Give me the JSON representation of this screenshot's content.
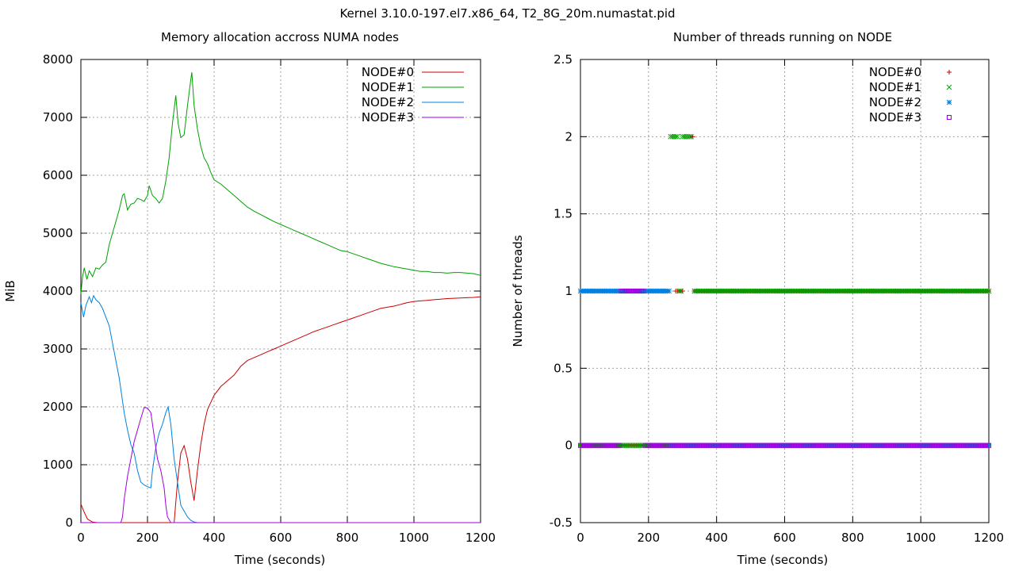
{
  "figure_title": "Kernel 3.10.0-197.el7.x86_64, T2_8G_20m.numastat.pid",
  "chart_data": [
    {
      "type": "line",
      "title": "Memory allocation accross NUMA nodes",
      "xlabel": "Time (seconds)",
      "ylabel": "MiB",
      "xlim": [
        0,
        1200
      ],
      "ylim": [
        0,
        8000
      ],
      "xticks": [
        0,
        200,
        400,
        600,
        800,
        1000,
        1200
      ],
      "yticks": [
        0,
        1000,
        2000,
        3000,
        4000,
        5000,
        6000,
        7000,
        8000
      ],
      "grid": true,
      "legend_position": "top-right",
      "series": [
        {
          "name": "NODE#0",
          "color": "#cc0000",
          "points": [
            [
              0,
              320
            ],
            [
              10,
              180
            ],
            [
              20,
              60
            ],
            [
              35,
              10
            ],
            [
              50,
              0
            ],
            [
              280,
              0
            ],
            [
              290,
              700
            ],
            [
              300,
              1200
            ],
            [
              310,
              1330
            ],
            [
              320,
              1100
            ],
            [
              330,
              700
            ],
            [
              340,
              380
            ],
            [
              350,
              900
            ],
            [
              360,
              1350
            ],
            [
              370,
              1700
            ],
            [
              380,
              1950
            ],
            [
              400,
              2200
            ],
            [
              420,
              2350
            ],
            [
              440,
              2450
            ],
            [
              460,
              2550
            ],
            [
              480,
              2700
            ],
            [
              500,
              2800
            ],
            [
              520,
              2850
            ],
            [
              540,
              2900
            ],
            [
              560,
              2950
            ],
            [
              580,
              3000
            ],
            [
              600,
              3050
            ],
            [
              620,
              3100
            ],
            [
              640,
              3150
            ],
            [
              660,
              3200
            ],
            [
              680,
              3250
            ],
            [
              700,
              3300
            ],
            [
              720,
              3340
            ],
            [
              740,
              3380
            ],
            [
              760,
              3420
            ],
            [
              780,
              3460
            ],
            [
              800,
              3500
            ],
            [
              820,
              3540
            ],
            [
              840,
              3580
            ],
            [
              860,
              3620
            ],
            [
              880,
              3660
            ],
            [
              900,
              3700
            ],
            [
              920,
              3720
            ],
            [
              940,
              3740
            ],
            [
              960,
              3770
            ],
            [
              980,
              3800
            ],
            [
              1000,
              3820
            ],
            [
              1020,
              3830
            ],
            [
              1040,
              3840
            ],
            [
              1060,
              3850
            ],
            [
              1080,
              3860
            ],
            [
              1100,
              3870
            ],
            [
              1120,
              3875
            ],
            [
              1140,
              3880
            ],
            [
              1160,
              3885
            ],
            [
              1180,
              3890
            ],
            [
              1200,
              3900
            ]
          ]
        },
        {
          "name": "NODE#1",
          "color": "#00a000",
          "points": [
            [
              0,
              3950
            ],
            [
              5,
              4250
            ],
            [
              10,
              4400
            ],
            [
              18,
              4200
            ],
            [
              25,
              4350
            ],
            [
              35,
              4250
            ],
            [
              45,
              4400
            ],
            [
              55,
              4380
            ],
            [
              65,
              4450
            ],
            [
              75,
              4500
            ],
            [
              85,
              4800
            ],
            [
              95,
              5000
            ],
            [
              105,
              5200
            ],
            [
              115,
              5400
            ],
            [
              125,
              5650
            ],
            [
              130,
              5680
            ],
            [
              140,
              5400
            ],
            [
              150,
              5500
            ],
            [
              160,
              5520
            ],
            [
              170,
              5600
            ],
            [
              180,
              5580
            ],
            [
              190,
              5550
            ],
            [
              200,
              5650
            ],
            [
              205,
              5820
            ],
            [
              215,
              5650
            ],
            [
              225,
              5600
            ],
            [
              235,
              5520
            ],
            [
              245,
              5600
            ],
            [
              255,
              5900
            ],
            [
              265,
              6300
            ],
            [
              275,
              6900
            ],
            [
              285,
              7380
            ],
            [
              292,
              6900
            ],
            [
              300,
              6650
            ],
            [
              310,
              6700
            ],
            [
              320,
              7200
            ],
            [
              330,
              7650
            ],
            [
              333,
              7780
            ],
            [
              340,
              7200
            ],
            [
              350,
              6800
            ],
            [
              360,
              6500
            ],
            [
              370,
              6300
            ],
            [
              380,
              6200
            ],
            [
              390,
              6050
            ],
            [
              400,
              5920
            ],
            [
              420,
              5850
            ],
            [
              440,
              5750
            ],
            [
              460,
              5650
            ],
            [
              480,
              5550
            ],
            [
              500,
              5450
            ],
            [
              520,
              5380
            ],
            [
              540,
              5320
            ],
            [
              560,
              5260
            ],
            [
              580,
              5200
            ],
            [
              600,
              5150
            ],
            [
              620,
              5100
            ],
            [
              640,
              5050
            ],
            [
              660,
              5000
            ],
            [
              680,
              4950
            ],
            [
              700,
              4900
            ],
            [
              720,
              4850
            ],
            [
              740,
              4800
            ],
            [
              760,
              4750
            ],
            [
              780,
              4700
            ],
            [
              800,
              4680
            ],
            [
              820,
              4640
            ],
            [
              840,
              4600
            ],
            [
              860,
              4560
            ],
            [
              880,
              4520
            ],
            [
              900,
              4480
            ],
            [
              920,
              4450
            ],
            [
              940,
              4420
            ],
            [
              960,
              4400
            ],
            [
              980,
              4380
            ],
            [
              1000,
              4360
            ],
            [
              1020,
              4340
            ],
            [
              1040,
              4340
            ],
            [
              1060,
              4320
            ],
            [
              1080,
              4320
            ],
            [
              1100,
              4310
            ],
            [
              1120,
              4320
            ],
            [
              1140,
              4320
            ],
            [
              1160,
              4310
            ],
            [
              1180,
              4300
            ],
            [
              1200,
              4270
            ]
          ]
        },
        {
          "name": "NODE#2",
          "color": "#0080e0",
          "points": [
            [
              0,
              3800
            ],
            [
              8,
              3550
            ],
            [
              15,
              3750
            ],
            [
              25,
              3900
            ],
            [
              32,
              3800
            ],
            [
              38,
              3920
            ],
            [
              45,
              3850
            ],
            [
              55,
              3800
            ],
            [
              65,
              3700
            ],
            [
              75,
              3550
            ],
            [
              85,
              3400
            ],
            [
              95,
              3100
            ],
            [
              105,
              2800
            ],
            [
              115,
              2500
            ],
            [
              125,
              2100
            ],
            [
              130,
              1900
            ],
            [
              140,
              1600
            ],
            [
              150,
              1350
            ],
            [
              160,
              1200
            ],
            [
              170,
              900
            ],
            [
              180,
              700
            ],
            [
              190,
              650
            ],
            [
              200,
              620
            ],
            [
              210,
              600
            ],
            [
              215,
              900
            ],
            [
              225,
              1300
            ],
            [
              235,
              1550
            ],
            [
              245,
              1700
            ],
            [
              255,
              1900
            ],
            [
              262,
              2000
            ],
            [
              270,
              1700
            ],
            [
              280,
              1100
            ],
            [
              290,
              700
            ],
            [
              300,
              300
            ],
            [
              310,
              200
            ],
            [
              320,
              100
            ],
            [
              330,
              40
            ],
            [
              340,
              10
            ],
            [
              350,
              0
            ],
            [
              1200,
              0
            ]
          ]
        },
        {
          "name": "NODE#3",
          "color": "#a000e0",
          "points": [
            [
              0,
              0
            ],
            [
              120,
              0
            ],
            [
              125,
              100
            ],
            [
              130,
              400
            ],
            [
              140,
              800
            ],
            [
              150,
              1100
            ],
            [
              160,
              1400
            ],
            [
              170,
              1600
            ],
            [
              180,
              1800
            ],
            [
              190,
              1990
            ],
            [
              200,
              1980
            ],
            [
              210,
              1900
            ],
            [
              220,
              1500
            ],
            [
              230,
              1100
            ],
            [
              240,
              900
            ],
            [
              250,
              600
            ],
            [
              255,
              300
            ],
            [
              260,
              100
            ],
            [
              270,
              0
            ],
            [
              1200,
              0
            ]
          ]
        }
      ]
    },
    {
      "type": "scatter",
      "title": "Number of threads running on NODE",
      "xlabel": "Time (seconds)",
      "ylabel": "Number of threads",
      "xlim": [
        0,
        1200
      ],
      "ylim": [
        -0.5,
        2.5
      ],
      "xticks": [
        0,
        200,
        400,
        600,
        800,
        1000,
        1200
      ],
      "yticks": [
        -0.5,
        0,
        0.5,
        1,
        1.5,
        2,
        2.5
      ],
      "grid": true,
      "legend_position": "top-right",
      "sample_step_seconds": 5,
      "series": [
        {
          "name": "NODE#0",
          "color": "#cc0000",
          "marker": "plus",
          "segments": [
            {
              "from": 0,
              "to": 270,
              "value": 0
            },
            {
              "from": 280,
              "to": 300,
              "value": 1
            },
            {
              "from": 305,
              "to": 325,
              "value": 0
            },
            {
              "from": 325,
              "to": 330,
              "value": 2
            },
            {
              "from": 335,
              "to": 1200,
              "value": 1
            }
          ]
        },
        {
          "name": "NODE#1",
          "color": "#00a000",
          "marker": "cross",
          "segments": [
            {
              "from": 0,
              "to": 260,
              "value": 0
            },
            {
              "from": 265,
              "to": 285,
              "value": 2
            },
            {
              "from": 290,
              "to": 295,
              "value": 1
            },
            {
              "from": 300,
              "to": 325,
              "value": 2
            },
            {
              "from": 335,
              "to": 1200,
              "value": 1
            }
          ]
        },
        {
          "name": "NODE#2",
          "color": "#0080e0",
          "marker": "star",
          "segments": [
            {
              "from": 0,
              "to": 260,
              "value": 1
            },
            {
              "from": 265,
              "to": 1200,
              "value": 0
            }
          ]
        },
        {
          "name": "NODE#3",
          "color": "#a000e0",
          "marker": "square",
          "segments": [
            {
              "from": 0,
              "to": 115,
              "value": 0
            },
            {
              "from": 120,
              "to": 185,
              "value": 1
            },
            {
              "from": 190,
              "to": 1200,
              "value": 0
            }
          ]
        }
      ]
    }
  ]
}
